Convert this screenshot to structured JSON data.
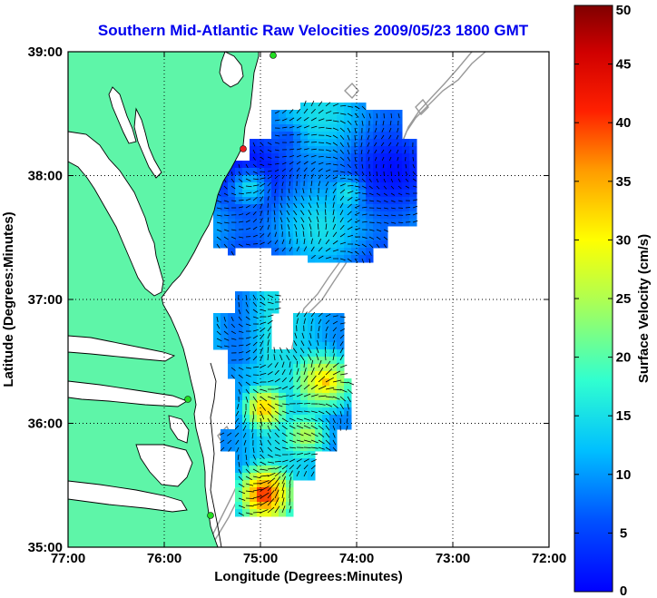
{
  "chart_data": {
    "type": "heatmap",
    "title": "Southern Mid-Atlantic Raw Velocities 2009/05/23 1800 GMT",
    "xlabel": "Longitude (Degrees:Minutes)",
    "ylabel": "Latitude (Degrees:Minutes)",
    "x_range": [
      -77,
      -72
    ],
    "y_range": [
      35,
      39
    ],
    "x_ticks": [
      "77:00",
      "76:00",
      "75:00",
      "74:00",
      "73:00",
      "72:00"
    ],
    "y_ticks": [
      "39:00",
      "38:00",
      "37:00",
      "36:00",
      "35:00"
    ],
    "grid": true,
    "colorbar": {
      "label": "Surface Velocity (cm/s)",
      "min": 0,
      "max": 50,
      "ticks": [
        "50",
        "45",
        "40",
        "35",
        "30",
        "25",
        "20",
        "15",
        "10",
        "5",
        "0"
      ]
    },
    "colors": {
      "land": "#5ef5a8",
      "coast": "#000000",
      "bathymetry": "#999999",
      "arrow": "#000000",
      "title": "#0000ee"
    }
  }
}
